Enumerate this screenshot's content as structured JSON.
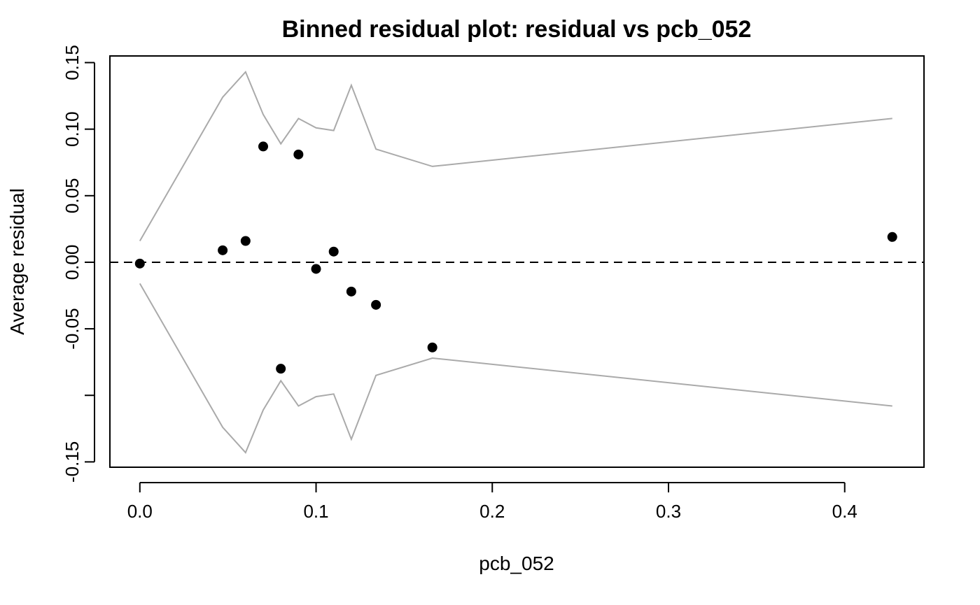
{
  "chart_data": {
    "type": "scatter",
    "title": "Binned residual plot: residual vs pcb_052",
    "xlabel": "pcb_052",
    "ylabel": "Average residual",
    "xlim": [
      -0.017,
      0.445
    ],
    "ylim": [
      -0.154,
      0.155
    ],
    "x_ticks": [
      0.0,
      0.1,
      0.2,
      0.3,
      0.4
    ],
    "x_tick_labels": [
      "0.0",
      "0.1",
      "0.2",
      "0.3",
      "0.4"
    ],
    "y_ticks": [
      -0.15,
      -0.1,
      -0.05,
      0.0,
      0.05,
      0.1,
      0.15
    ],
    "y_tick_labels": [
      "-0.15",
      "",
      "-0.05",
      "0.00",
      "0.05",
      "0.10",
      "0.15"
    ],
    "reference_line": {
      "y": 0,
      "style": "dashed",
      "color": "#000000"
    },
    "band_color": "#aaaaaa",
    "point_color": "#000000",
    "grid": false,
    "points": {
      "x": [
        0.0,
        0.047,
        0.06,
        0.07,
        0.08,
        0.09,
        0.1,
        0.11,
        0.12,
        0.134,
        0.166,
        0.427
      ],
      "y": [
        -0.001,
        0.009,
        0.016,
        0.087,
        -0.08,
        0.081,
        -0.005,
        0.008,
        -0.022,
        -0.032,
        -0.064,
        0.019
      ]
    },
    "band_upper": {
      "x": [
        0.0,
        0.047,
        0.06,
        0.07,
        0.08,
        0.09,
        0.1,
        0.11,
        0.12,
        0.134,
        0.166,
        0.427
      ],
      "y": [
        0.016,
        0.124,
        0.143,
        0.111,
        0.089,
        0.108,
        0.101,
        0.099,
        0.133,
        0.085,
        0.072,
        0.108
      ]
    },
    "band_lower": {
      "x": [
        0.0,
        0.047,
        0.06,
        0.07,
        0.08,
        0.09,
        0.1,
        0.11,
        0.12,
        0.134,
        0.166,
        0.427
      ],
      "y": [
        -0.016,
        -0.124,
        -0.143,
        -0.111,
        -0.089,
        -0.108,
        -0.101,
        -0.099,
        -0.133,
        -0.085,
        -0.072,
        -0.108
      ]
    }
  }
}
